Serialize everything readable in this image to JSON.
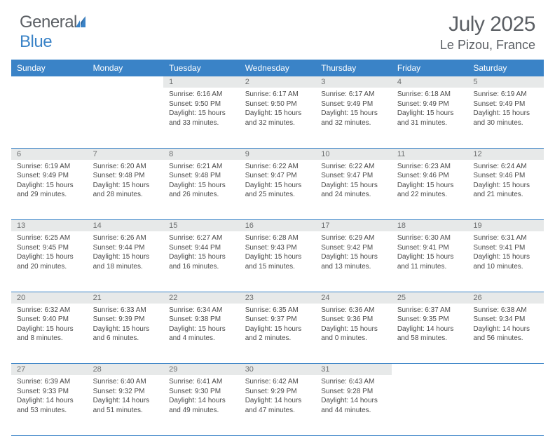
{
  "brand": {
    "part1": "General",
    "part2": "Blue"
  },
  "title": "July 2025",
  "location": "Le Pizou, France",
  "colors": {
    "header_bg": "#3a83c7",
    "header_text": "#ffffff",
    "daynum_bg": "#e7e9e9",
    "daynum_text": "#6d6f70",
    "body_text": "#4a4a4a",
    "title_text": "#5b5f64",
    "rule": "#3a83c7"
  },
  "day_headers": [
    "Sunday",
    "Monday",
    "Tuesday",
    "Wednesday",
    "Thursday",
    "Friday",
    "Saturday"
  ],
  "weeks": [
    [
      null,
      null,
      {
        "n": "1",
        "sunrise": "6:16 AM",
        "sunset": "9:50 PM",
        "daylight": "15 hours and 33 minutes."
      },
      {
        "n": "2",
        "sunrise": "6:17 AM",
        "sunset": "9:50 PM",
        "daylight": "15 hours and 32 minutes."
      },
      {
        "n": "3",
        "sunrise": "6:17 AM",
        "sunset": "9:49 PM",
        "daylight": "15 hours and 32 minutes."
      },
      {
        "n": "4",
        "sunrise": "6:18 AM",
        "sunset": "9:49 PM",
        "daylight": "15 hours and 31 minutes."
      },
      {
        "n": "5",
        "sunrise": "6:19 AM",
        "sunset": "9:49 PM",
        "daylight": "15 hours and 30 minutes."
      }
    ],
    [
      {
        "n": "6",
        "sunrise": "6:19 AM",
        "sunset": "9:49 PM",
        "daylight": "15 hours and 29 minutes."
      },
      {
        "n": "7",
        "sunrise": "6:20 AM",
        "sunset": "9:48 PM",
        "daylight": "15 hours and 28 minutes."
      },
      {
        "n": "8",
        "sunrise": "6:21 AM",
        "sunset": "9:48 PM",
        "daylight": "15 hours and 26 minutes."
      },
      {
        "n": "9",
        "sunrise": "6:22 AM",
        "sunset": "9:47 PM",
        "daylight": "15 hours and 25 minutes."
      },
      {
        "n": "10",
        "sunrise": "6:22 AM",
        "sunset": "9:47 PM",
        "daylight": "15 hours and 24 minutes."
      },
      {
        "n": "11",
        "sunrise": "6:23 AM",
        "sunset": "9:46 PM",
        "daylight": "15 hours and 22 minutes."
      },
      {
        "n": "12",
        "sunrise": "6:24 AM",
        "sunset": "9:46 PM",
        "daylight": "15 hours and 21 minutes."
      }
    ],
    [
      {
        "n": "13",
        "sunrise": "6:25 AM",
        "sunset": "9:45 PM",
        "daylight": "15 hours and 20 minutes."
      },
      {
        "n": "14",
        "sunrise": "6:26 AM",
        "sunset": "9:44 PM",
        "daylight": "15 hours and 18 minutes."
      },
      {
        "n": "15",
        "sunrise": "6:27 AM",
        "sunset": "9:44 PM",
        "daylight": "15 hours and 16 minutes."
      },
      {
        "n": "16",
        "sunrise": "6:28 AM",
        "sunset": "9:43 PM",
        "daylight": "15 hours and 15 minutes."
      },
      {
        "n": "17",
        "sunrise": "6:29 AM",
        "sunset": "9:42 PM",
        "daylight": "15 hours and 13 minutes."
      },
      {
        "n": "18",
        "sunrise": "6:30 AM",
        "sunset": "9:41 PM",
        "daylight": "15 hours and 11 minutes."
      },
      {
        "n": "19",
        "sunrise": "6:31 AM",
        "sunset": "9:41 PM",
        "daylight": "15 hours and 10 minutes."
      }
    ],
    [
      {
        "n": "20",
        "sunrise": "6:32 AM",
        "sunset": "9:40 PM",
        "daylight": "15 hours and 8 minutes."
      },
      {
        "n": "21",
        "sunrise": "6:33 AM",
        "sunset": "9:39 PM",
        "daylight": "15 hours and 6 minutes."
      },
      {
        "n": "22",
        "sunrise": "6:34 AM",
        "sunset": "9:38 PM",
        "daylight": "15 hours and 4 minutes."
      },
      {
        "n": "23",
        "sunrise": "6:35 AM",
        "sunset": "9:37 PM",
        "daylight": "15 hours and 2 minutes."
      },
      {
        "n": "24",
        "sunrise": "6:36 AM",
        "sunset": "9:36 PM",
        "daylight": "15 hours and 0 minutes."
      },
      {
        "n": "25",
        "sunrise": "6:37 AM",
        "sunset": "9:35 PM",
        "daylight": "14 hours and 58 minutes."
      },
      {
        "n": "26",
        "sunrise": "6:38 AM",
        "sunset": "9:34 PM",
        "daylight": "14 hours and 56 minutes."
      }
    ],
    [
      {
        "n": "27",
        "sunrise": "6:39 AM",
        "sunset": "9:33 PM",
        "daylight": "14 hours and 53 minutes."
      },
      {
        "n": "28",
        "sunrise": "6:40 AM",
        "sunset": "9:32 PM",
        "daylight": "14 hours and 51 minutes."
      },
      {
        "n": "29",
        "sunrise": "6:41 AM",
        "sunset": "9:30 PM",
        "daylight": "14 hours and 49 minutes."
      },
      {
        "n": "30",
        "sunrise": "6:42 AM",
        "sunset": "9:29 PM",
        "daylight": "14 hours and 47 minutes."
      },
      {
        "n": "31",
        "sunrise": "6:43 AM",
        "sunset": "9:28 PM",
        "daylight": "14 hours and 44 minutes."
      },
      null,
      null
    ]
  ],
  "labels": {
    "sunrise": "Sunrise:",
    "sunset": "Sunset:",
    "daylight": "Daylight:"
  }
}
